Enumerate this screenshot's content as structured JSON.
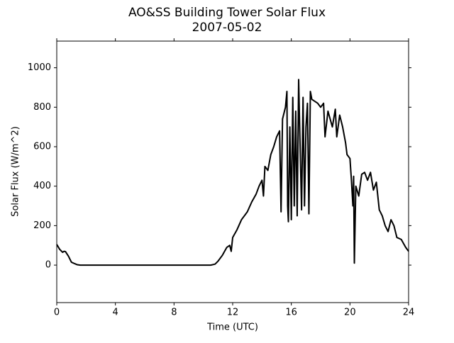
{
  "chart_data": {
    "type": "line",
    "title": "AO&SS Building Tower Solar Flux",
    "subtitle": "2007-05-02",
    "xlabel": "Time (UTC)",
    "ylabel": "Solar Flux (W/m^2)",
    "x": [
      0,
      0.2,
      0.4,
      0.5,
      0.6,
      0.8,
      1.0,
      1.2,
      1.4,
      1.6,
      2,
      3,
      4,
      5,
      6,
      7,
      8,
      9,
      10,
      10.5,
      10.8,
      11.0,
      11.3,
      11.6,
      11.8,
      11.9,
      12.0,
      12.3,
      12.6,
      13.0,
      13.3,
      13.6,
      13.8,
      14.0,
      14.1,
      14.2,
      14.4,
      14.6,
      14.8,
      15.0,
      15.2,
      15.3,
      15.4,
      15.6,
      15.7,
      15.75,
      15.8,
      15.9,
      16.0,
      16.1,
      16.2,
      16.3,
      16.4,
      16.5,
      16.6,
      16.7,
      16.8,
      16.9,
      17.0,
      17.1,
      17.2,
      17.3,
      17.4,
      17.6,
      17.8,
      18.0,
      18.2,
      18.3,
      18.5,
      18.8,
      19.0,
      19.1,
      19.3,
      19.5,
      19.7,
      19.8,
      20.0,
      20.1,
      20.2,
      20.25,
      20.3,
      20.4,
      20.6,
      20.8,
      21.0,
      21.2,
      21.4,
      21.6,
      21.8,
      22.0,
      22.2,
      22.4,
      22.6,
      22.8,
      23.0,
      23.2,
      23.5,
      23.8,
      24.0
    ],
    "series": [
      {
        "name": "Solar Flux",
        "color": "#000000",
        "values": [
          105,
          80,
          65,
          70,
          68,
          45,
          15,
          8,
          2,
          0,
          0,
          0,
          0,
          0,
          0,
          0,
          0,
          0,
          0,
          0,
          5,
          20,
          50,
          90,
          100,
          70,
          140,
          180,
          230,
          270,
          320,
          360,
          400,
          430,
          350,
          500,
          480,
          560,
          600,
          650,
          680,
          270,
          740,
          800,
          880,
          300,
          220,
          700,
          230,
          850,
          300,
          780,
          250,
          940,
          600,
          280,
          850,
          300,
          700,
          820,
          260,
          880,
          840,
          830,
          820,
          800,
          820,
          650,
          780,
          700,
          790,
          650,
          760,
          700,
          620,
          560,
          540,
          430,
          300,
          450,
          10,
          400,
          350,
          460,
          470,
          430,
          470,
          380,
          420,
          280,
          250,
          200,
          170,
          230,
          200,
          140,
          130,
          90,
          70
        ]
      }
    ],
    "xlim": [
      0,
      24
    ],
    "xticks": [
      0,
      4,
      8,
      12,
      16,
      20,
      24
    ],
    "ylim": [
      -190,
      1135
    ],
    "yticks": [
      0,
      200,
      400,
      600,
      800,
      1000
    ]
  }
}
